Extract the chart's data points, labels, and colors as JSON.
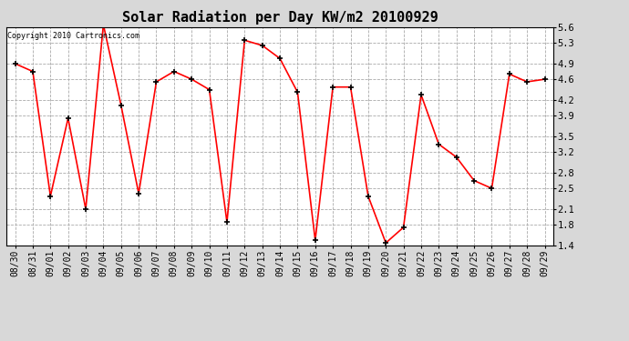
{
  "title": "Solar Radiation per Day KW/m2 20100929",
  "copyright_text": "Copyright 2010 Cartronics.com",
  "x_labels": [
    "08/30",
    "08/31",
    "09/01",
    "09/02",
    "09/03",
    "09/04",
    "09/05",
    "09/06",
    "09/07",
    "09/08",
    "09/09",
    "09/10",
    "09/11",
    "09/12",
    "09/13",
    "09/14",
    "09/15",
    "09/16",
    "09/17",
    "09/18",
    "09/19",
    "09/20",
    "09/21",
    "09/22",
    "09/23",
    "09/24",
    "09/25",
    "09/26",
    "09/27",
    "09/28",
    "09/29"
  ],
  "y_values": [
    4.9,
    4.75,
    2.35,
    3.85,
    2.1,
    5.65,
    4.1,
    2.4,
    4.55,
    4.75,
    4.6,
    4.4,
    1.85,
    5.35,
    5.25,
    5.0,
    4.35,
    1.5,
    4.45,
    4.45,
    2.35,
    1.45,
    1.75,
    4.3,
    3.35,
    3.1,
    2.65,
    2.5,
    4.7,
    4.55,
    4.6
  ],
  "ylim_min": 1.4,
  "ylim_max": 5.6,
  "yticks": [
    1.4,
    1.8,
    2.1,
    2.5,
    2.8,
    3.2,
    3.5,
    3.9,
    4.2,
    4.6,
    4.9,
    5.3,
    5.6
  ],
  "line_color": "red",
  "marker": "+",
  "marker_color": "black",
  "bg_color": "#d8d8d8",
  "plot_bg_color": "#ffffff",
  "grid_color": "#aaaaaa",
  "title_fontsize": 11,
  "copyright_fontsize": 6,
  "tick_fontsize": 7,
  "ytick_fontsize": 7.5
}
